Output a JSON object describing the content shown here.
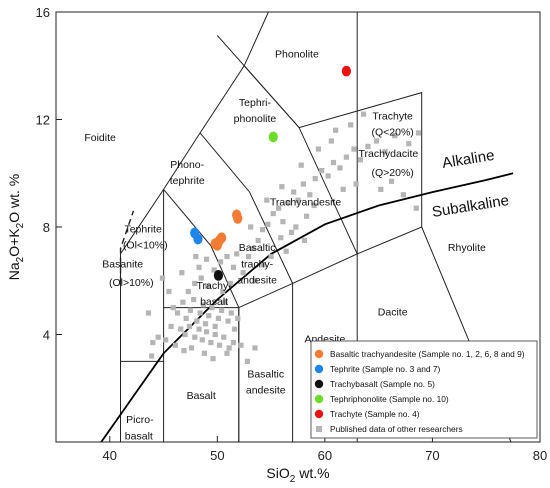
{
  "chart_data": {
    "type": "scatter",
    "title": "",
    "xlabel": {
      "main": "SiO",
      "sub": "2",
      "tail": " wt.%"
    },
    "ylabel": {
      "p1": "Na",
      "s1": "2",
      "p2": "O+K",
      "s2": "2",
      "p3": "O wt. %"
    },
    "xlim": [
      35,
      80
    ],
    "ylim": [
      0,
      16
    ],
    "x_ticks": [
      40,
      50,
      60,
      70,
      80
    ],
    "y_ticks": [
      4,
      8,
      12,
      16
    ],
    "grid": false,
    "legend_position": "bottom-right",
    "field_boundaries": [
      [
        [
          41,
          0
        ],
        [
          41,
          7
        ],
        [
          45,
          9.4
        ],
        [
          48.4,
          11.5
        ],
        [
          52.5,
          14
        ],
        [
          54.75,
          16
        ]
      ],
      [
        [
          45,
          0
        ],
        [
          45,
          5
        ],
        [
          52,
          5
        ],
        [
          52,
          0
        ]
      ],
      [
        [
          41,
          3
        ],
        [
          45,
          3
        ]
      ],
      [
        [
          52,
          0
        ],
        [
          52,
          5
        ],
        [
          57,
          5.9
        ],
        [
          63,
          7
        ],
        [
          69,
          8
        ],
        [
          77.3,
          0
        ]
      ],
      [
        [
          57,
          0
        ],
        [
          57,
          5.9
        ]
      ],
      [
        [
          63,
          0
        ],
        [
          63,
          7
        ]
      ],
      [
        [
          45,
          5
        ],
        [
          45,
          9.4
        ]
      ],
      [
        [
          52,
          5
        ],
        [
          49.4,
          7.3
        ],
        [
          45,
          9.4
        ]
      ],
      [
        [
          57,
          5.9
        ],
        [
          53,
          9.3
        ],
        [
          48.4,
          11.5
        ]
      ],
      [
        [
          63,
          7
        ],
        [
          57.6,
          11.7
        ],
        [
          52.5,
          14
        ]
      ],
      [
        [
          69,
          8
        ],
        [
          69,
          13
        ],
        [
          57.6,
          11.7
        ]
      ],
      [
        [
          63,
          7
        ],
        [
          63,
          16.8
        ]
      ],
      [
        [
          57.6,
          11.7
        ],
        [
          50,
          15.13
        ]
      ]
    ],
    "alkaline_line": [
      [
        39.2,
        0
      ],
      [
        45,
        3.3
      ],
      [
        50,
        5.3
      ],
      [
        55,
        7
      ],
      [
        60,
        8.1
      ],
      [
        65,
        8.8
      ],
      [
        70,
        9.3
      ],
      [
        75,
        9.75
      ],
      [
        77.5,
        10
      ]
    ],
    "alkaline_label": "Alkaline",
    "subalkaline_label": "Subalkaline",
    "field_labels": [
      {
        "text": "Phonolite",
        "x": 57.4,
        "y": 14.3
      },
      {
        "text": "Foidite",
        "x": 39.1,
        "y": 11.2
      },
      {
        "text": "Tephri-",
        "x": 53.5,
        "y": 12.5
      },
      {
        "text": "phonolite",
        "x": 53.5,
        "y": 11.9
      },
      {
        "text": "Phono-",
        "x": 47.2,
        "y": 10.2
      },
      {
        "text": "tephrite",
        "x": 47.2,
        "y": 9.6
      },
      {
        "text": "Trachyte",
        "x": 66.3,
        "y": 12.0
      },
      {
        "text": "(Q<20%)",
        "x": 66.3,
        "y": 11.4
      },
      {
        "text": "Trachydacite",
        "x": 65.9,
        "y": 10.6
      },
      {
        "text": "(Q>20%)",
        "x": 66.3,
        "y": 9.9
      },
      {
        "text": "Trachyandesite",
        "x": 58.2,
        "y": 8.8
      },
      {
        "text": "Tephrite",
        "x": 43.1,
        "y": 7.8
      },
      {
        "text": "(Ol<10%)",
        "x": 43.3,
        "y": 7.2
      },
      {
        "text": "Basanite",
        "x": 41.2,
        "y": 6.5
      },
      {
        "text": "(Ol>10%)",
        "x": 42.0,
        "y": 5.8
      },
      {
        "text": "Basaltic",
        "x": 53.7,
        "y": 7.1
      },
      {
        "text": "trachy-",
        "x": 53.7,
        "y": 6.5
      },
      {
        "text": "andesite",
        "x": 53.7,
        "y": 5.9
      },
      {
        "text": "Trachy-",
        "x": 49.7,
        "y": 5.7
      },
      {
        "text": "basalt",
        "x": 49.7,
        "y": 5.1
      },
      {
        "text": "Rhyolite",
        "x": 73.2,
        "y": 7.1
      },
      {
        "text": "Dacite",
        "x": 66.3,
        "y": 4.7
      },
      {
        "text": "Andesite",
        "x": 60.0,
        "y": 3.7
      },
      {
        "text": "Basaltic",
        "x": 54.5,
        "y": 2.4
      },
      {
        "text": "andesite",
        "x": 54.5,
        "y": 1.8
      },
      {
        "text": "Basalt",
        "x": 48.5,
        "y": 1.6
      },
      {
        "text": "Picro-",
        "x": 42.8,
        "y": 0.7
      },
      {
        "text": "basalt",
        "x": 42.7,
        "y": 0.1
      }
    ],
    "series": [
      {
        "name": "Basaltic trachyandesite (Sample no. 1, 2, 6, 8 and 9)",
        "color": "#f47b34",
        "marker": "circle",
        "points": [
          [
            51.8,
            8.45
          ],
          [
            51.9,
            8.32
          ],
          [
            50.4,
            7.6
          ],
          [
            50.2,
            7.5
          ],
          [
            50.0,
            7.32
          ],
          [
            49.8,
            7.38
          ]
        ]
      },
      {
        "name": "Tephrite (Sample no. 3 and 7)",
        "color": "#1e86ea",
        "marker": "circle",
        "points": [
          [
            47.9,
            7.78
          ],
          [
            48.2,
            7.55
          ]
        ]
      },
      {
        "name": "Trachybasalt (Sample no. 5)",
        "color": "#111111",
        "marker": "circle",
        "points": [
          [
            50.1,
            6.2
          ]
        ]
      },
      {
        "name": "Tephriphonolite (Sample no. 10)",
        "color": "#6bdc2a",
        "marker": "circle",
        "points": [
          [
            55.2,
            11.35
          ]
        ]
      },
      {
        "name": "Trachyte (Sample no. 4)",
        "color": "#ee1111",
        "marker": "circle",
        "points": [
          [
            62.0,
            13.8
          ]
        ]
      },
      {
        "name": "Published data of other researchers",
        "color": "#b5b5b5",
        "marker": "square",
        "points": [
          [
            45.9,
            5.0
          ],
          [
            46.3,
            4.8
          ],
          [
            46.8,
            5.2
          ],
          [
            47.1,
            4.6
          ],
          [
            47.5,
            4.9
          ],
          [
            47.8,
            5.3
          ],
          [
            48.1,
            4.5
          ],
          [
            48.4,
            4.8
          ],
          [
            48.7,
            5.1
          ],
          [
            48.9,
            4.4
          ],
          [
            49.2,
            4.7
          ],
          [
            49.5,
            5.0
          ],
          [
            49.8,
            4.3
          ],
          [
            50.1,
            4.6
          ],
          [
            50.4,
            4.9
          ],
          [
            50.7,
            5.2
          ],
          [
            51.0,
            4.5
          ],
          [
            51.3,
            4.8
          ],
          [
            51.6,
            4.2
          ],
          [
            51.9,
            4.6
          ],
          [
            46.6,
            4.2
          ],
          [
            47.0,
            4.0
          ],
          [
            47.4,
            4.3
          ],
          [
            47.9,
            3.9
          ],
          [
            48.3,
            4.2
          ],
          [
            48.6,
            3.8
          ],
          [
            49.0,
            4.1
          ],
          [
            49.4,
            3.7
          ],
          [
            49.8,
            4.0
          ],
          [
            50.2,
            3.6
          ],
          [
            50.6,
            3.9
          ],
          [
            51.1,
            3.5
          ],
          [
            45.7,
            4.3
          ],
          [
            45.2,
            3.8
          ],
          [
            44.5,
            3.9
          ],
          [
            43.9,
            3.2
          ],
          [
            46.1,
            3.6
          ],
          [
            46.9,
            3.4
          ],
          [
            47.6,
            3.5
          ],
          [
            48.8,
            3.3
          ],
          [
            49.6,
            3.1
          ],
          [
            50.9,
            3.3
          ],
          [
            51.5,
            3.7
          ],
          [
            52.2,
            3.6
          ],
          [
            52.8,
            3.0
          ],
          [
            53.5,
            3.5
          ],
          [
            47.3,
            5.6
          ],
          [
            47.9,
            5.9
          ],
          [
            48.5,
            6.1
          ],
          [
            49.1,
            5.8
          ],
          [
            49.7,
            6.4
          ],
          [
            50.3,
            6.7
          ],
          [
            50.9,
            6.9
          ],
          [
            51.5,
            6.5
          ],
          [
            51.8,
            7.0
          ],
          [
            49.0,
            6.8
          ],
          [
            48.3,
            6.5
          ],
          [
            50.5,
            5.6
          ],
          [
            51.2,
            5.9
          ],
          [
            48.0,
            6.9
          ],
          [
            46.7,
            6.3
          ],
          [
            44.9,
            6.1
          ],
          [
            45.5,
            5.6
          ],
          [
            43.6,
            4.8
          ],
          [
            44.0,
            3.7
          ],
          [
            52.4,
            6.3
          ],
          [
            52.9,
            6.9
          ],
          [
            53.3,
            7.2
          ],
          [
            53.8,
            7.5
          ],
          [
            54.2,
            7.9
          ],
          [
            54.7,
            8.1
          ],
          [
            55.2,
            8.5
          ],
          [
            55.7,
            8.7
          ],
          [
            56.1,
            8.2
          ],
          [
            56.6,
            8.9
          ],
          [
            57.1,
            9.3
          ],
          [
            57.5,
            9.0
          ],
          [
            58.0,
            9.6
          ],
          [
            58.6,
            9.2
          ],
          [
            59.1,
            9.8
          ],
          [
            59.7,
            10.1
          ],
          [
            60.3,
            9.9
          ],
          [
            60.8,
            10.4
          ],
          [
            61.4,
            10.2
          ],
          [
            62.0,
            10.6
          ],
          [
            62.7,
            10.9
          ],
          [
            63.3,
            10.5
          ],
          [
            64.0,
            11.0
          ],
          [
            64.8,
            11.2
          ],
          [
            65.6,
            10.8
          ],
          [
            66.5,
            11.4
          ],
          [
            67.8,
            11.1
          ],
          [
            68.7,
            11.5
          ],
          [
            61.0,
            11.6
          ],
          [
            62.4,
            11.8
          ],
          [
            63.6,
            12.2
          ],
          [
            56.0,
            9.5
          ],
          [
            57.8,
            10.3
          ],
          [
            59.4,
            10.9
          ],
          [
            60.6,
            11.2
          ],
          [
            54.6,
            9.0
          ],
          [
            53.1,
            8.0
          ],
          [
            55.9,
            7.6
          ],
          [
            57.3,
            8.0
          ],
          [
            58.3,
            8.4
          ],
          [
            59.0,
            8.8
          ],
          [
            53.5,
            6.0
          ],
          [
            54.3,
            6.6
          ],
          [
            55.0,
            6.9
          ],
          [
            56.4,
            7.1
          ],
          [
            56.9,
            7.8
          ],
          [
            58.1,
            7.5
          ],
          [
            65.2,
            9.4
          ],
          [
            66.2,
            9.7
          ],
          [
            67.3,
            9.2
          ],
          [
            68.5,
            8.7
          ],
          [
            61.7,
            9.4
          ],
          [
            62.9,
            9.6
          ]
        ]
      }
    ]
  }
}
